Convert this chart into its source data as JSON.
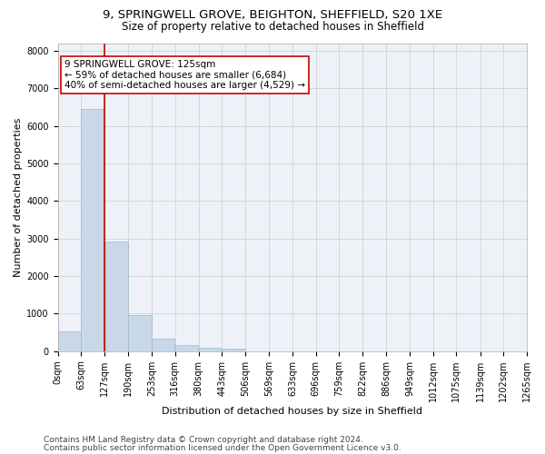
{
  "title_line1": "9, SPRINGWELL GROVE, BEIGHTON, SHEFFIELD, S20 1XE",
  "title_line2": "Size of property relative to detached houses in Sheffield",
  "xlabel": "Distribution of detached houses by size in Sheffield",
  "ylabel": "Number of detached properties",
  "bar_color": "#c8d8e8",
  "bar_edge_color": "#a0b8cc",
  "bins": [
    0,
    63,
    127,
    190,
    253,
    316,
    380,
    443,
    506,
    569,
    633,
    696,
    759,
    822,
    886,
    949,
    1012,
    1075,
    1139,
    1202,
    1265
  ],
  "bin_labels": [
    "0sqm",
    "63sqm",
    "127sqm",
    "190sqm",
    "253sqm",
    "316sqm",
    "380sqm",
    "443sqm",
    "506sqm",
    "569sqm",
    "633sqm",
    "696sqm",
    "759sqm",
    "822sqm",
    "886sqm",
    "949sqm",
    "1012sqm",
    "1075sqm",
    "1139sqm",
    "1202sqm",
    "1265sqm"
  ],
  "bar_heights": [
    530,
    6440,
    2920,
    970,
    330,
    155,
    95,
    55,
    0,
    0,
    0,
    0,
    0,
    0,
    0,
    0,
    0,
    0,
    0,
    0
  ],
  "property_size": 125,
  "property_line_color": "#cc0000",
  "annotation_text": "9 SPRINGWELL GROVE: 125sqm\n← 59% of detached houses are smaller (6,684)\n40% of semi-detached houses are larger (4,529) →",
  "annotation_box_color": "#ffffff",
  "annotation_box_edge_color": "#cc0000",
  "ylim": [
    0,
    8200
  ],
  "yticks": [
    0,
    1000,
    2000,
    3000,
    4000,
    5000,
    6000,
    7000,
    8000
  ],
  "grid_color": "#cccccc",
  "background_color": "#eef2f8",
  "footer_line1": "Contains HM Land Registry data © Crown copyright and database right 2024.",
  "footer_line2": "Contains public sector information licensed under the Open Government Licence v3.0.",
  "title_fontsize": 9.5,
  "subtitle_fontsize": 8.5,
  "axis_label_fontsize": 8,
  "tick_fontsize": 7,
  "footer_fontsize": 6.5,
  "annotation_fontsize": 7.5
}
